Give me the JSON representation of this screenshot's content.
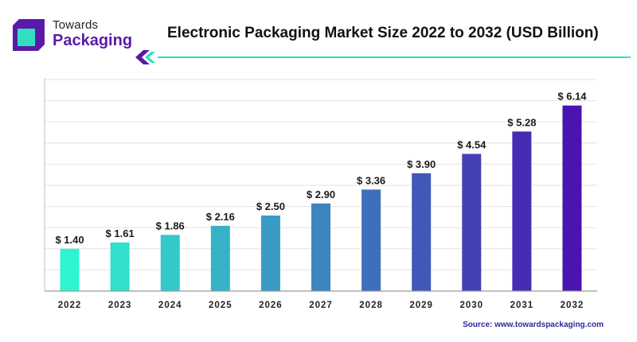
{
  "logo": {
    "line1": "Towards",
    "line2": "Packaging",
    "icon": "towards-packaging-logo-icon"
  },
  "source": "Source: www.towardspackaging.com",
  "colors": {
    "brand_purple": "#5a1aa8",
    "accent_teal": "#2fe0c0",
    "bar_start": "#2ef5cf",
    "bar_end": "#4a14b0"
  },
  "chart_data": {
    "type": "bar",
    "title": "Electronic Packaging Market Size 2022 to 2032 (USD Billion)",
    "xlabel": "",
    "ylabel": "",
    "categories": [
      "2022",
      "2023",
      "2024",
      "2025",
      "2026",
      "2027",
      "2028",
      "2029",
      "2030",
      "2031",
      "2032"
    ],
    "values": [
      1.4,
      1.61,
      1.86,
      2.16,
      2.5,
      2.9,
      3.36,
      3.9,
      4.54,
      5.28,
      6.14
    ],
    "value_labels": [
      "$ 1.40",
      "$ 1.61",
      "$ 1.86",
      "$ 2.16",
      "$ 2.50",
      "$ 2.90",
      "$ 3.36",
      "$ 3.90",
      "$ 4.54",
      "$ 5.28",
      "$ 6.14"
    ],
    "ylim": [
      0,
      7
    ],
    "grid": true,
    "legend": "none"
  }
}
